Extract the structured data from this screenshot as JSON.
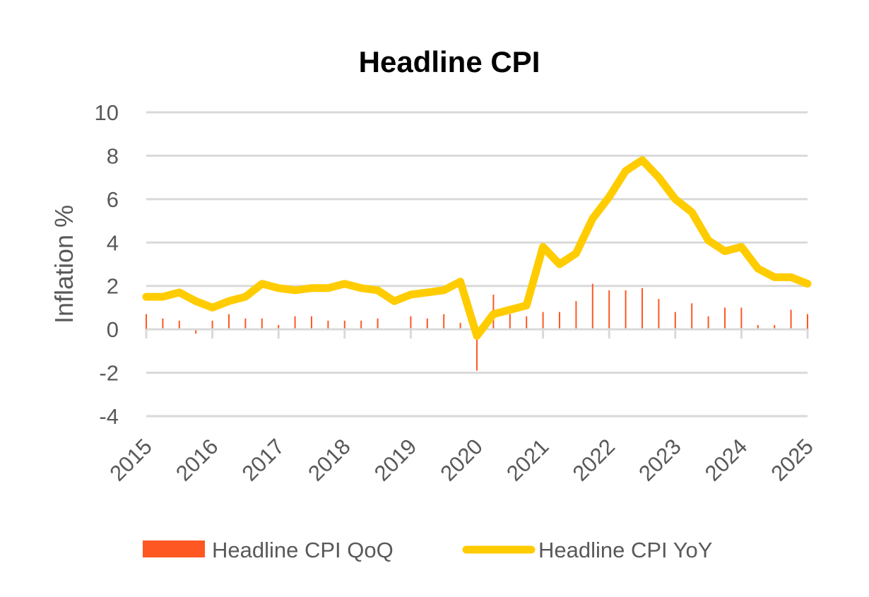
{
  "chart_data": {
    "type": "bar+line",
    "title": "Headline CPI",
    "xlabel": "",
    "ylabel": "Inflation %",
    "ylim": [
      -4,
      10
    ],
    "yticks": [
      -4,
      -2,
      0,
      2,
      4,
      6,
      8,
      10
    ],
    "xlim": [
      2015,
      2025
    ],
    "xticks": [
      "2015",
      "2016",
      "2017",
      "2018",
      "2019",
      "2020",
      "2021",
      "2022",
      "2023",
      "2024",
      "2025"
    ],
    "grid": true,
    "legend_position": "bottom",
    "x": [
      "2015Q1",
      "2015Q2",
      "2015Q3",
      "2015Q4",
      "2016Q1",
      "2016Q2",
      "2016Q3",
      "2016Q4",
      "2017Q1",
      "2017Q2",
      "2017Q3",
      "2017Q4",
      "2018Q1",
      "2018Q2",
      "2018Q3",
      "2018Q4",
      "2019Q1",
      "2019Q2",
      "2019Q3",
      "2019Q4",
      "2020Q1",
      "2020Q2",
      "2020Q3",
      "2020Q4",
      "2021Q1",
      "2021Q2",
      "2021Q3",
      "2021Q4",
      "2022Q1",
      "2022Q2",
      "2022Q3",
      "2022Q4",
      "2023Q1",
      "2023Q2",
      "2023Q3",
      "2023Q4",
      "2024Q1",
      "2024Q2",
      "2024Q3",
      "2024Q4",
      "2025Q1"
    ],
    "series": [
      {
        "name": "Headline CPI QoQ",
        "type": "bar",
        "color": "#FF5722",
        "values": [
          0.7,
          0.5,
          0.4,
          -0.2,
          0.4,
          0.7,
          0.5,
          0.5,
          0.2,
          0.6,
          0.6,
          0.4,
          0.4,
          0.4,
          0.5,
          0.0,
          0.6,
          0.5,
          0.7,
          0.3,
          -1.9,
          1.6,
          0.7,
          0.6,
          0.8,
          0.8,
          1.3,
          2.1,
          1.8,
          1.8,
          1.9,
          1.4,
          0.8,
          1.2,
          0.6,
          1.0,
          1.0,
          0.2,
          0.2,
          0.9,
          0.7
        ]
      },
      {
        "name": "Headline CPI YoY",
        "type": "line",
        "color": "#FFCC00",
        "values": [
          1.5,
          1.5,
          1.7,
          1.3,
          1.0,
          1.3,
          1.5,
          2.1,
          1.9,
          1.8,
          1.9,
          1.9,
          2.1,
          1.9,
          1.8,
          1.3,
          1.6,
          1.7,
          1.8,
          2.2,
          -0.3,
          0.7,
          0.9,
          1.1,
          3.8,
          3.0,
          3.5,
          5.1,
          6.1,
          7.3,
          7.8,
          7.0,
          6.0,
          5.4,
          4.1,
          3.6,
          3.8,
          2.8,
          2.4,
          2.4,
          2.1
        ]
      }
    ]
  }
}
